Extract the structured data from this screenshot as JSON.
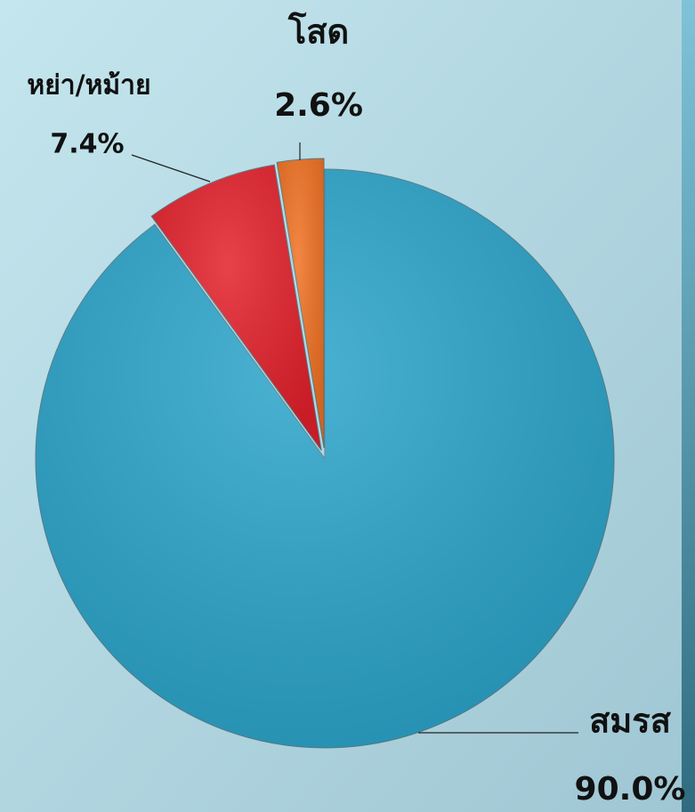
{
  "chart_data": {
    "type": "pie",
    "categories": [
      "สมรส",
      "หย่า/หม้าย",
      "โสด"
    ],
    "values": [
      90.0,
      7.4,
      2.6
    ],
    "value_labels": [
      "90.0%",
      "7.4%",
      "2.6%"
    ],
    "colors": [
      "#2ba4ca",
      "#e3202b",
      "#f07122"
    ]
  }
}
